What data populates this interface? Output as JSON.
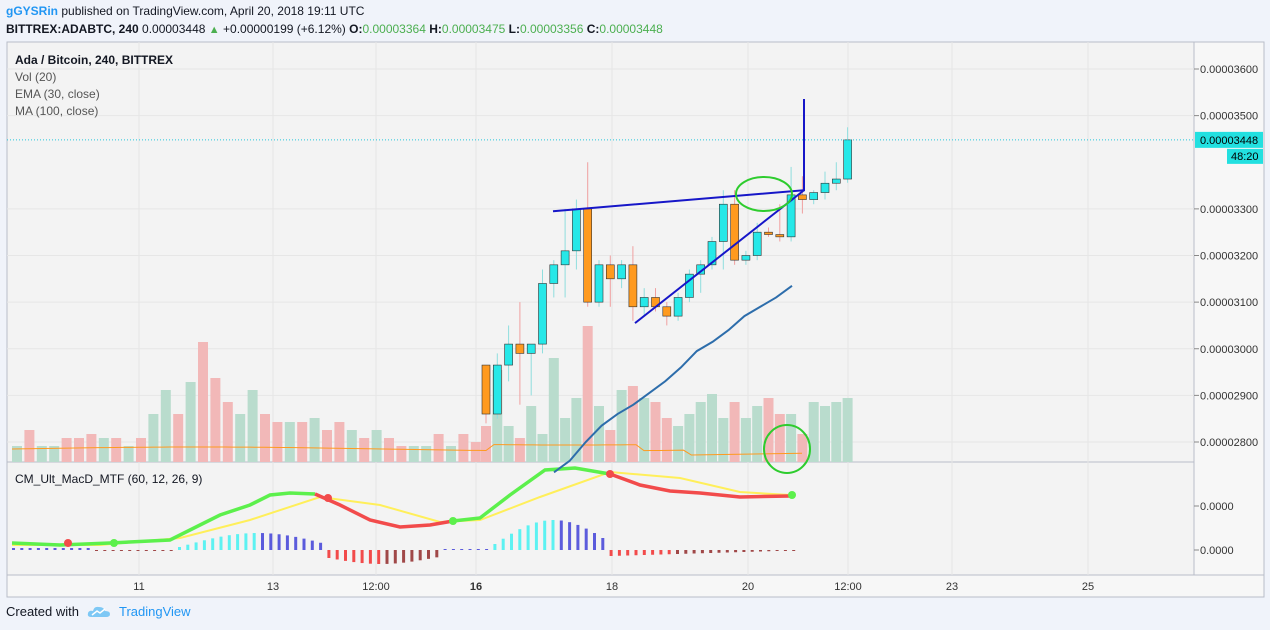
{
  "header": {
    "author": "gGYSRin",
    "published": "published on TradingView.com, April 20, 2018 19:11 UTC",
    "symbol": "BITTREX:ADABTC, 240",
    "last": "0.00003448",
    "change": "+0.00000199 (+6.12%)",
    "o_label": "O:",
    "o": "0.00003364",
    "h_label": "H:",
    "h": "0.00003475",
    "l_label": "L:",
    "l": "0.00003356",
    "c_label": "C:",
    "c": "0.00003448"
  },
  "legend": {
    "title": "Ada / Bitcoin, 240, BITTREX",
    "vol": "Vol (20)",
    "ema": "EMA (30, close)",
    "ma": "MA (100, close)"
  },
  "macd_title": "CM_Ult_MacD_MTF (60, 12, 26, 9)",
  "footer": {
    "created_with": "Created with",
    "brand": "TradingView"
  },
  "colors": {
    "up": "#26e8e8",
    "down": "#ff9a1f",
    "ema": "#2d6dab",
    "ma": "#ff9a1f",
    "trend": "#1616c8",
    "circle": "#2ecc2e",
    "macd_up": "#5cf04c",
    "macd_down": "#f24b4b",
    "signal": "#ffef5a"
  },
  "chart_data": {
    "type": "candlestick",
    "price_axis": {
      "ticks": [
        "0.00003600",
        "0.00003500",
        "0.00003300",
        "0.00003200",
        "0.00003100",
        "0.00003000",
        "0.00002900",
        "0.00002800"
      ],
      "current_price": "0.00003448",
      "countdown": "48:20",
      "range": [
        2.75e-05,
        3.65e-05
      ]
    },
    "macd_axis": {
      "ticks": [
        "0.0000",
        "0.0000"
      ]
    },
    "time_axis": {
      "ticks": [
        "11",
        "13",
        "12:00",
        "16",
        "18",
        "20",
        "12:00",
        "23",
        "25"
      ]
    },
    "candles": [
      [
        2.965e-05,
        2.965e-05,
        2.84e-05,
        2.86e-05
      ],
      [
        2.86e-05,
        2.99e-05,
        2.85e-05,
        2.965e-05
      ],
      [
        2.965e-05,
        3.05e-05,
        2.93e-05,
        3.01e-05
      ],
      [
        3.01e-05,
        3.1e-05,
        2.88e-05,
        2.99e-05
      ],
      [
        2.99e-05,
        3.01e-05,
        2.9e-05,
        3.01e-05
      ],
      [
        3.01e-05,
        3.17e-05,
        2.99e-05,
        3.14e-05
      ],
      [
        3.14e-05,
        3.19e-05,
        3.11e-05,
        3.18e-05
      ],
      [
        3.18e-05,
        3.3e-05,
        3.11e-05,
        3.21e-05
      ],
      [
        3.21e-05,
        3.32e-05,
        3.17e-05,
        3.3e-05
      ],
      [
        3.3e-05,
        3.4e-05,
        3.09e-05,
        3.1e-05
      ],
      [
        3.1e-05,
        3.19e-05,
        3.09e-05,
        3.18e-05
      ],
      [
        3.18e-05,
        3.2e-05,
        3.09e-05,
        3.15e-05
      ],
      [
        3.15e-05,
        3.19e-05,
        3.13e-05,
        3.18e-05
      ],
      [
        3.18e-05,
        3.22e-05,
        3.06e-05,
        3.09e-05
      ],
      [
        3.09e-05,
        3.13e-05,
        3.07e-05,
        3.11e-05
      ],
      [
        3.11e-05,
        3.13e-05,
        3.08e-05,
        3.09e-05
      ],
      [
        3.09e-05,
        3.1e-05,
        3.05e-05,
        3.07e-05
      ],
      [
        3.07e-05,
        3.12e-05,
        3.06e-05,
        3.11e-05
      ],
      [
        3.11e-05,
        3.17e-05,
        3.1e-05,
        3.16e-05
      ],
      [
        3.16e-05,
        3.19e-05,
        3.12e-05,
        3.18e-05
      ],
      [
        3.18e-05,
        3.24e-05,
        3.17e-05,
        3.23e-05
      ],
      [
        3.23e-05,
        3.34e-05,
        3.17e-05,
        3.31e-05
      ],
      [
        3.31e-05,
        3.34e-05,
        3.18e-05,
        3.19e-05
      ],
      [
        3.19e-05,
        3.21e-05,
        3.18e-05,
        3.2e-05
      ],
      [
        3.2e-05,
        3.27e-05,
        3.19e-05,
        3.25e-05
      ],
      [
        3.25e-05,
        3.26e-05,
        3.24e-05,
        3.245e-05
      ],
      [
        3.245e-05,
        3.31e-05,
        3.23e-05,
        3.24e-05
      ],
      [
        3.24e-05,
        3.39e-05,
        3.23e-05,
        3.33e-05
      ],
      [
        3.33e-05,
        3.37e-05,
        3.29e-05,
        3.32e-05
      ],
      [
        3.32e-05,
        3.34e-05,
        3.31e-05,
        3.335e-05
      ],
      [
        3.335e-05,
        3.38e-05,
        3.32e-05,
        3.355e-05
      ],
      [
        3.355e-05,
        3.4e-05,
        3.34e-05,
        3.364e-05
      ],
      [
        3.364e-05,
        3.475e-05,
        3.356e-05,
        3.448e-05
      ]
    ],
    "volumes": [
      0.9,
      2.3,
      0.9,
      0.6,
      1.4,
      0.7,
      2.6,
      1.1,
      1.6,
      3.4,
      1.4,
      0.8,
      1.8,
      1.9,
      1.6,
      1.5,
      1.1,
      0.9,
      1.2,
      1.5,
      1.7,
      1.1,
      1.5,
      1.1,
      1.4,
      1.6,
      1.2,
      1.2,
      0.7,
      1.5,
      1.4,
      1.5,
      1.6
    ],
    "ema": [
      2.735e-05,
      2.76e-05,
      2.8e-05,
      2.835e-05,
      2.86e-05,
      2.88e-05,
      2.905e-05,
      2.93e-05,
      2.96e-05,
      2.995e-05,
      3.015e-05,
      3.04e-05,
      3.07e-05,
      3.09e-05,
      3.11e-05,
      3.135e-05
    ],
    "ma_volume": [
      1.4,
      1.5,
      1.5,
      1.6,
      1.7,
      1.7,
      1.6,
      1.5,
      1.4,
      1.3,
      1.2
    ],
    "trendlines": {
      "resistance": [
        [
          3.295e-05,
          3.33e-05
        ]
      ],
      "support": [
        [
          3.055e-05,
          3.33e-05
        ]
      ]
    }
  }
}
